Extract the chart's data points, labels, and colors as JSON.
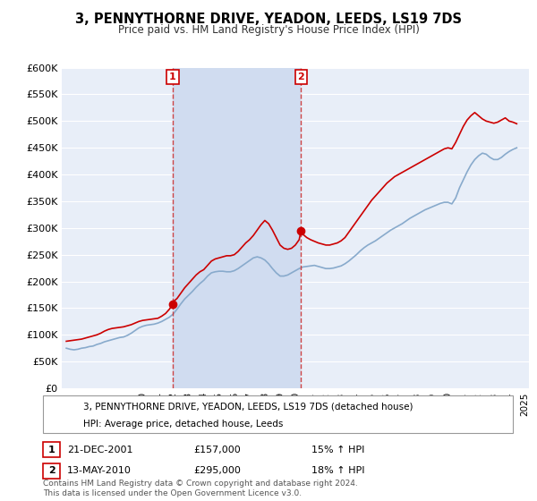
{
  "title": "3, PENNYTHORNE DRIVE, YEADON, LEEDS, LS19 7DS",
  "subtitle": "Price paid vs. HM Land Registry's House Price Index (HPI)",
  "ylim": [
    0,
    600000
  ],
  "yticks": [
    0,
    50000,
    100000,
    150000,
    200000,
    250000,
    300000,
    350000,
    400000,
    450000,
    500000,
    550000,
    600000
  ],
  "ytick_labels": [
    "£0",
    "£50K",
    "£100K",
    "£150K",
    "£200K",
    "£250K",
    "£300K",
    "£350K",
    "£400K",
    "£450K",
    "£500K",
    "£550K",
    "£600K"
  ],
  "background_color": "#ffffff",
  "plot_bg_color": "#e8eef8",
  "shaded_bg_color": "#d0dcf0",
  "grid_color": "#ffffff",
  "red_line_color": "#cc0000",
  "blue_line_color": "#88aacc",
  "transaction_line_color": "#cc3333",
  "transactions": [
    {
      "label": "1",
      "year": 2001.97,
      "price": 157000,
      "date_str": "21-DEC-2001",
      "price_str": "£157,000",
      "hpi_str": "15% ↑ HPI"
    },
    {
      "label": "2",
      "year": 2010.37,
      "price": 295000,
      "date_str": "13-MAY-2010",
      "price_str": "£295,000",
      "hpi_str": "18% ↑ HPI"
    }
  ],
  "legend_property": "3, PENNYTHORNE DRIVE, YEADON, LEEDS, LS19 7DS (detached house)",
  "legend_hpi": "HPI: Average price, detached house, Leeds",
  "footer": "Contains HM Land Registry data © Crown copyright and database right 2024.\nThis data is licensed under the Open Government Licence v3.0.",
  "xlim_left": 1994.7,
  "xlim_right": 2025.3,
  "hpi_data_years": [
    1995.0,
    1995.25,
    1995.5,
    1995.75,
    1996.0,
    1996.25,
    1996.5,
    1996.75,
    1997.0,
    1997.25,
    1997.5,
    1997.75,
    1998.0,
    1998.25,
    1998.5,
    1998.75,
    1999.0,
    1999.25,
    1999.5,
    1999.75,
    2000.0,
    2000.25,
    2000.5,
    2000.75,
    2001.0,
    2001.25,
    2001.5,
    2001.75,
    2002.0,
    2002.25,
    2002.5,
    2002.75,
    2003.0,
    2003.25,
    2003.5,
    2003.75,
    2004.0,
    2004.25,
    2004.5,
    2004.75,
    2005.0,
    2005.25,
    2005.5,
    2005.75,
    2006.0,
    2006.25,
    2006.5,
    2006.75,
    2007.0,
    2007.25,
    2007.5,
    2007.75,
    2008.0,
    2008.25,
    2008.5,
    2008.75,
    2009.0,
    2009.25,
    2009.5,
    2009.75,
    2010.0,
    2010.25,
    2010.5,
    2010.75,
    2011.0,
    2011.25,
    2011.5,
    2011.75,
    2012.0,
    2012.25,
    2012.5,
    2012.75,
    2013.0,
    2013.25,
    2013.5,
    2013.75,
    2014.0,
    2014.25,
    2014.5,
    2014.75,
    2015.0,
    2015.25,
    2015.5,
    2015.75,
    2016.0,
    2016.25,
    2016.5,
    2016.75,
    2017.0,
    2017.25,
    2017.5,
    2017.75,
    2018.0,
    2018.25,
    2018.5,
    2018.75,
    2019.0,
    2019.25,
    2019.5,
    2019.75,
    2020.0,
    2020.25,
    2020.5,
    2020.75,
    2021.0,
    2021.25,
    2021.5,
    2021.75,
    2022.0,
    2022.25,
    2022.5,
    2022.75,
    2023.0,
    2023.25,
    2023.5,
    2023.75,
    2024.0,
    2024.25,
    2024.5
  ],
  "hpi_data_values": [
    75000,
    73000,
    72000,
    73000,
    75000,
    76000,
    78000,
    79000,
    82000,
    84000,
    87000,
    89000,
    91000,
    93000,
    95000,
    96000,
    99000,
    103000,
    108000,
    113000,
    116000,
    118000,
    119000,
    120000,
    122000,
    125000,
    129000,
    133000,
    139000,
    148000,
    158000,
    167000,
    174000,
    181000,
    189000,
    196000,
    202000,
    210000,
    216000,
    218000,
    219000,
    219000,
    218000,
    218000,
    220000,
    224000,
    229000,
    234000,
    239000,
    244000,
    246000,
    244000,
    240000,
    233000,
    224000,
    216000,
    210000,
    210000,
    212000,
    216000,
    220000,
    224000,
    227000,
    228000,
    229000,
    230000,
    228000,
    226000,
    224000,
    224000,
    225000,
    227000,
    229000,
    233000,
    238000,
    244000,
    250000,
    257000,
    263000,
    268000,
    272000,
    276000,
    281000,
    286000,
    291000,
    296000,
    300000,
    304000,
    308000,
    313000,
    318000,
    322000,
    326000,
    330000,
    334000,
    337000,
    340000,
    343000,
    346000,
    348000,
    348000,
    345000,
    356000,
    375000,
    390000,
    405000,
    418000,
    428000,
    435000,
    440000,
    438000,
    432000,
    428000,
    428000,
    432000,
    438000,
    443000,
    447000,
    450000
  ],
  "prop_data_years": [
    1995.0,
    1995.25,
    1995.5,
    1995.75,
    1996.0,
    1996.25,
    1996.5,
    1996.75,
    1997.0,
    1997.25,
    1997.5,
    1997.75,
    1998.0,
    1998.25,
    1998.5,
    1998.75,
    1999.0,
    1999.25,
    1999.5,
    1999.75,
    2000.0,
    2000.25,
    2000.5,
    2000.75,
    2001.0,
    2001.25,
    2001.5,
    2001.75,
    2001.97,
    2002.0,
    2002.25,
    2002.5,
    2002.75,
    2003.0,
    2003.25,
    2003.5,
    2003.75,
    2004.0,
    2004.25,
    2004.5,
    2004.75,
    2005.0,
    2005.25,
    2005.5,
    2005.75,
    2006.0,
    2006.25,
    2006.5,
    2006.75,
    2007.0,
    2007.25,
    2007.5,
    2007.75,
    2008.0,
    2008.25,
    2008.5,
    2008.75,
    2009.0,
    2009.25,
    2009.5,
    2009.75,
    2010.0,
    2010.25,
    2010.37,
    2010.5,
    2010.75,
    2011.0,
    2011.25,
    2011.5,
    2011.75,
    2012.0,
    2012.25,
    2012.5,
    2012.75,
    2013.0,
    2013.25,
    2013.5,
    2013.75,
    2014.0,
    2014.25,
    2014.5,
    2014.75,
    2015.0,
    2015.25,
    2015.5,
    2015.75,
    2016.0,
    2016.25,
    2016.5,
    2016.75,
    2017.0,
    2017.25,
    2017.5,
    2017.75,
    2018.0,
    2018.25,
    2018.5,
    2018.75,
    2019.0,
    2019.25,
    2019.5,
    2019.75,
    2020.0,
    2020.25,
    2020.5,
    2020.75,
    2021.0,
    2021.25,
    2021.5,
    2021.75,
    2022.0,
    2022.25,
    2022.5,
    2022.75,
    2023.0,
    2023.25,
    2023.5,
    2023.75,
    2024.0,
    2024.25,
    2024.5
  ],
  "prop_data_values": [
    88000,
    89000,
    90000,
    91000,
    92000,
    94000,
    96000,
    98000,
    100000,
    103000,
    107000,
    110000,
    112000,
    113000,
    114000,
    115000,
    117000,
    119000,
    122000,
    125000,
    127000,
    128000,
    129000,
    130000,
    131000,
    135000,
    140000,
    148000,
    157000,
    162000,
    168000,
    178000,
    188000,
    196000,
    204000,
    212000,
    218000,
    222000,
    230000,
    238000,
    242000,
    244000,
    246000,
    248000,
    248000,
    250000,
    256000,
    264000,
    272000,
    278000,
    286000,
    296000,
    306000,
    314000,
    308000,
    296000,
    282000,
    268000,
    262000,
    260000,
    262000,
    268000,
    278000,
    295000,
    288000,
    282000,
    278000,
    275000,
    272000,
    270000,
    268000,
    268000,
    270000,
    272000,
    276000,
    282000,
    292000,
    302000,
    312000,
    322000,
    332000,
    342000,
    352000,
    360000,
    368000,
    376000,
    384000,
    390000,
    396000,
    400000,
    404000,
    408000,
    412000,
    416000,
    420000,
    424000,
    428000,
    432000,
    436000,
    440000,
    444000,
    448000,
    450000,
    448000,
    460000,
    475000,
    490000,
    502000,
    510000,
    516000,
    510000,
    504000,
    500000,
    498000,
    496000,
    498000,
    502000,
    506000,
    500000,
    498000,
    495000
  ]
}
